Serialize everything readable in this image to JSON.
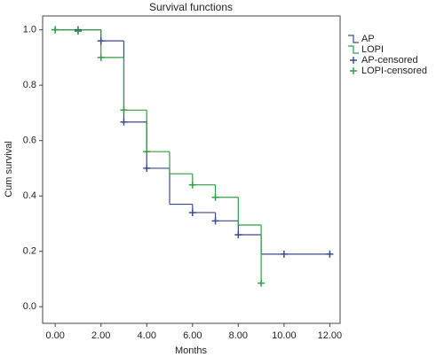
{
  "chart_data": {
    "type": "step",
    "title": "Survival functions",
    "x_label": "Months",
    "y_label": "Cum survival",
    "xlim": [
      -0.55,
      12.45
    ],
    "ylim": [
      -0.06,
      1.05
    ],
    "xticks": [
      {
        "value": 0,
        "label": "0.00"
      },
      {
        "value": 2,
        "label": "2.00"
      },
      {
        "value": 4,
        "label": "4.00"
      },
      {
        "value": 6,
        "label": "6.00"
      },
      {
        "value": 8,
        "label": "8.00"
      },
      {
        "value": 10,
        "label": "10.00"
      },
      {
        "value": 12,
        "label": "12.00"
      }
    ],
    "yticks": [
      {
        "value": 0,
        "label": "0.0"
      },
      {
        "value": 0.2,
        "label": "0.2"
      },
      {
        "value": 0.4,
        "label": "0.4"
      },
      {
        "value": 0.6,
        "label": "0.6"
      },
      {
        "value": 0.8,
        "label": "0.8"
      },
      {
        "value": 1,
        "label": "1.0"
      }
    ],
    "series": [
      {
        "name": "AP",
        "color": "#3a4a8e",
        "style": "step",
        "x": [
          0,
          2,
          3,
          4,
          5,
          6,
          7,
          8,
          9,
          12
        ],
        "values": [
          1.0,
          0.96,
          0.667,
          0.5,
          0.37,
          0.34,
          0.31,
          0.26,
          0.19,
          0.19
        ]
      },
      {
        "name": "LOPI",
        "color": "#2f9e44",
        "style": "step",
        "x": [
          0,
          2,
          3,
          4,
          5,
          6,
          7,
          8,
          9
        ],
        "values": [
          1.0,
          0.9,
          0.71,
          0.56,
          0.48,
          0.44,
          0.395,
          0.295,
          0.085
        ]
      },
      {
        "name": "AP-censored",
        "color": "#3a4a8e",
        "style": "censor",
        "x": [
          0,
          1,
          2,
          3,
          4,
          6,
          7,
          8,
          10,
          12
        ],
        "values": [
          1.0,
          1.0,
          0.96,
          0.667,
          0.5,
          0.34,
          0.31,
          0.26,
          0.19,
          0.19
        ]
      },
      {
        "name": "LOPI-censored",
        "color": "#2f9e44",
        "style": "censor",
        "x": [
          0,
          1,
          2,
          3,
          4,
          6,
          7,
          9
        ],
        "values": [
          1.0,
          0.995,
          0.9,
          0.71,
          0.56,
          0.44,
          0.395,
          0.085
        ]
      }
    ]
  }
}
